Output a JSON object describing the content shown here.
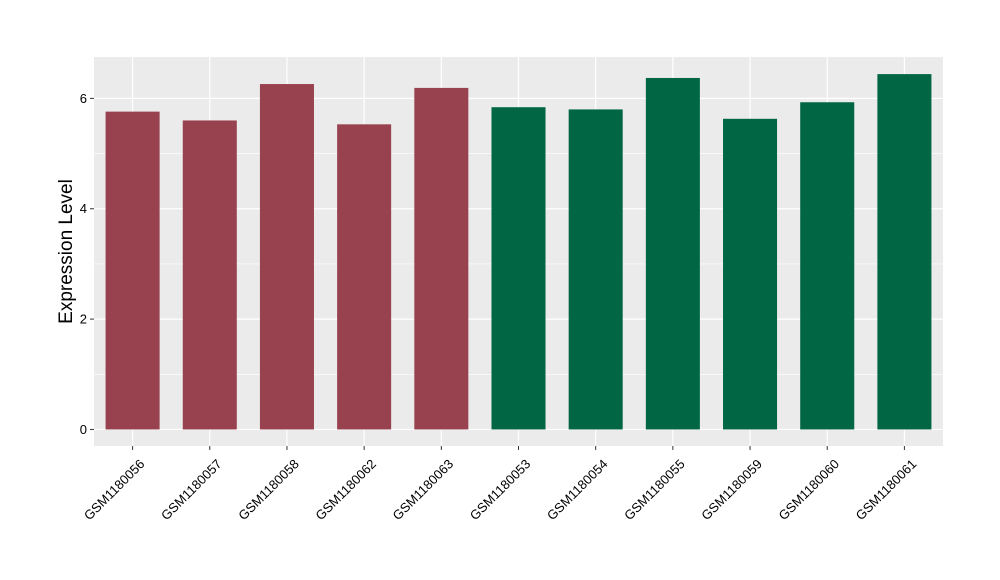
{
  "chart_data": {
    "type": "bar",
    "title": "",
    "xlabel": "",
    "ylabel": "Expression Level",
    "ylim": [
      -0.3,
      6.75
    ],
    "yticks": [
      0,
      2,
      4,
      6
    ],
    "grid": true,
    "legend": "none",
    "categories": [
      "GSM1180056",
      "GSM1180057",
      "GSM1180058",
      "GSM1180062",
      "GSM1180063",
      "GSM1180053",
      "GSM1180054",
      "GSM1180055",
      "GSM1180059",
      "GSM1180060",
      "GSM1180061"
    ],
    "values": [
      5.76,
      5.6,
      6.26,
      5.53,
      6.19,
      5.84,
      5.8,
      6.37,
      5.63,
      5.93,
      6.44
    ],
    "bar_colors": [
      "#98424f",
      "#98424f",
      "#98424f",
      "#98424f",
      "#98424f",
      "#006644",
      "#006644",
      "#006644",
      "#006644",
      "#006644",
      "#006644"
    ],
    "panel_background": "#ebebeb",
    "grid_color": "#ffffff"
  }
}
